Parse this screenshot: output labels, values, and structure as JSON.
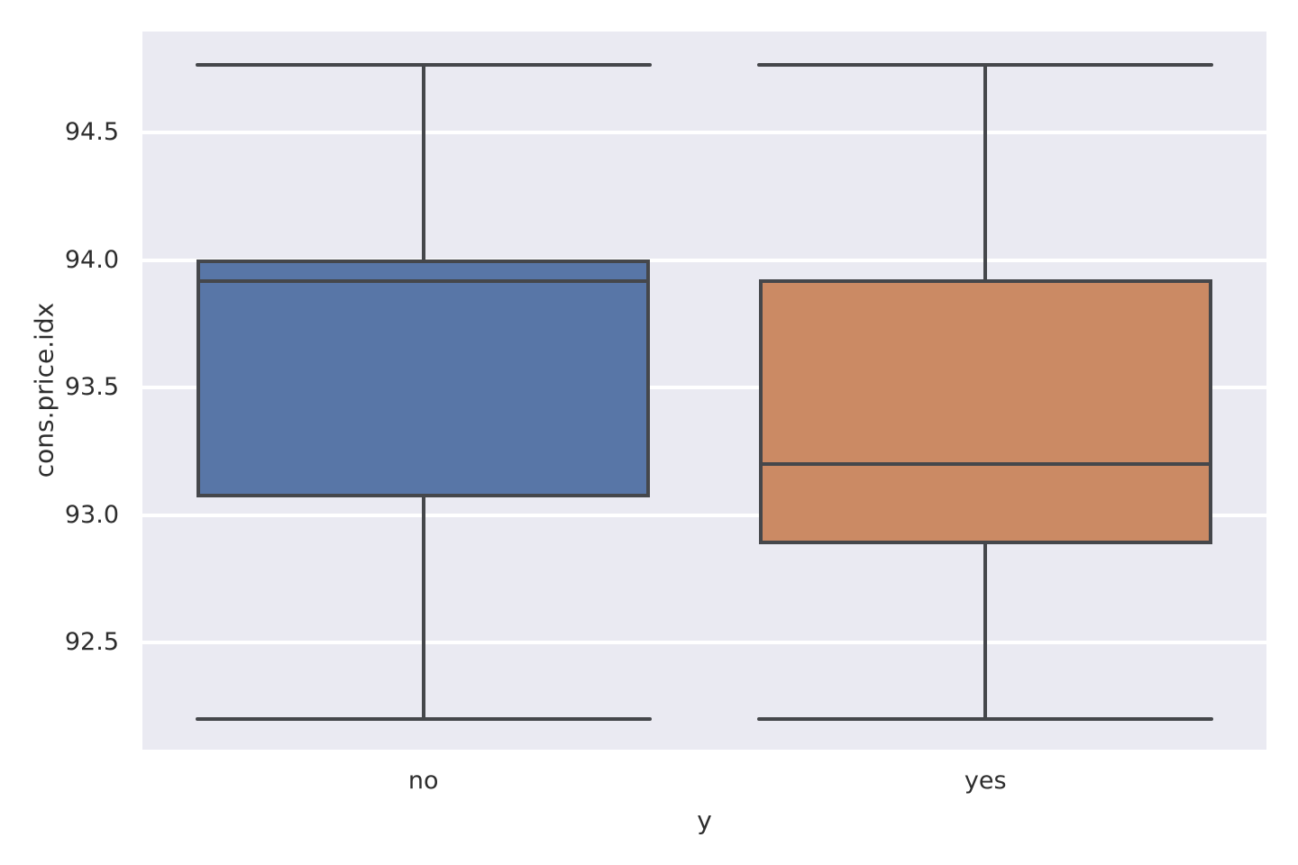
{
  "chart_data": {
    "type": "box",
    "title": "",
    "xlabel": "y",
    "ylabel": "cons.price.idx",
    "categories": [
      "no",
      "yes"
    ],
    "ylim": [
      92.08,
      94.897
    ],
    "yticks": [
      94.5,
      94.0,
      93.5,
      93.0,
      92.5
    ],
    "ytick_labels": [
      "94.5",
      "94.0",
      "93.5",
      "93.0",
      "92.5"
    ],
    "grid": true,
    "legend": false,
    "series": [
      {
        "name": "no",
        "whisker_low": 92.201,
        "q1": 93.075,
        "median": 93.918,
        "q3": 93.994,
        "whisker_high": 94.767,
        "fill_color": "#5876a7"
      },
      {
        "name": "yes",
        "whisker_low": 92.201,
        "q1": 92.893,
        "median": 93.2,
        "q3": 93.918,
        "whisker_high": 94.767,
        "fill_color": "#cb8a64"
      }
    ],
    "style": {
      "axes_background": "#eaeaf2",
      "gridline_color": "#ffffff",
      "line_color": "#45474b",
      "text_color": "#2d2d2d",
      "box_width_fraction": 0.4,
      "cap_width_fraction": 0.203
    }
  }
}
